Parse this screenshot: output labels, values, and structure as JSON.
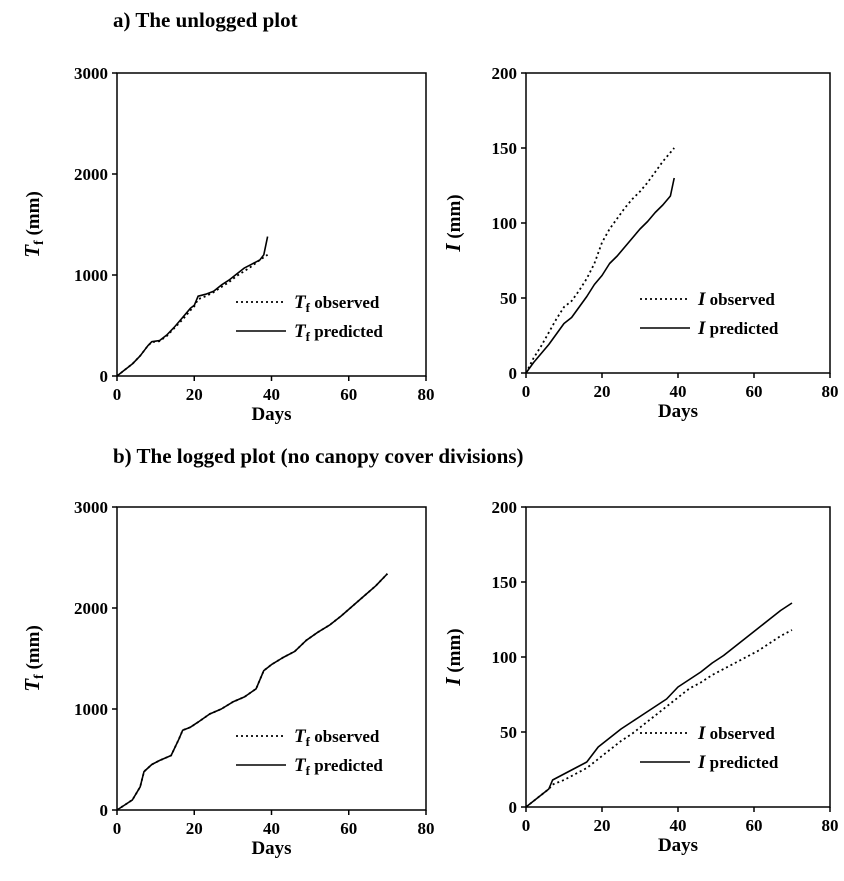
{
  "sections": [
    {
      "label": "a) The unlogged plot"
    },
    {
      "label": "b) The logged plot (no canopy cover divisions)"
    }
  ],
  "chart_data": [
    {
      "type": "line",
      "section": "a) The unlogged plot",
      "xlabel": "Days",
      "ylabel": {
        "base": "T",
        "sub": "f",
        "unit": " (mm)"
      },
      "xlim": [
        0,
        80
      ],
      "ylim": [
        0,
        3000
      ],
      "xticks": [
        0,
        20,
        40,
        60,
        80
      ],
      "yticks": [
        0,
        1000,
        2000,
        3000
      ],
      "grid": false,
      "legend_position": "bottom-right",
      "series": [
        {
          "name": {
            "base": "T",
            "sub": "f",
            "rest": " observed"
          },
          "style": "dotted",
          "x": [
            0,
            2,
            4,
            6,
            8,
            9,
            11,
            13,
            15,
            17,
            19,
            20,
            21,
            23,
            25,
            27,
            29,
            31,
            33,
            35,
            37,
            39
          ],
          "y": [
            0,
            60,
            120,
            200,
            300,
            335,
            345,
            400,
            480,
            560,
            650,
            690,
            760,
            790,
            830,
            880,
            930,
            990,
            1040,
            1090,
            1150,
            1200
          ]
        },
        {
          "name": {
            "base": "T",
            "sub": "f",
            "rest": " predicted"
          },
          "style": "solid",
          "x": [
            0,
            2,
            4,
            6,
            8,
            9,
            11,
            13,
            15,
            17,
            19,
            20,
            21,
            23,
            25,
            27,
            29,
            31,
            33,
            35,
            37,
            38,
            39
          ],
          "y": [
            0,
            60,
            120,
            200,
            300,
            340,
            350,
            410,
            490,
            580,
            670,
            700,
            790,
            810,
            840,
            900,
            950,
            1010,
            1070,
            1110,
            1150,
            1200,
            1380
          ]
        }
      ]
    },
    {
      "type": "line",
      "section": "a) The unlogged plot",
      "xlabel": "Days",
      "ylabel": {
        "base": "I",
        "sub": "",
        "unit": " (mm)"
      },
      "xlim": [
        0,
        80
      ],
      "ylim": [
        0,
        200
      ],
      "xticks": [
        0,
        20,
        40,
        60,
        80
      ],
      "yticks": [
        0,
        50,
        100,
        150,
        200
      ],
      "grid": false,
      "legend_position": "bottom-right",
      "series": [
        {
          "name": {
            "base": "I",
            "sub": "",
            "rest": " observed"
          },
          "style": "dotted",
          "x": [
            0,
            2,
            4,
            6,
            8,
            10,
            12,
            14,
            16,
            18,
            20,
            22,
            24,
            26,
            28,
            30,
            32,
            34,
            36,
            38,
            39
          ],
          "y": [
            0,
            10,
            18,
            27,
            36,
            44,
            48,
            55,
            63,
            73,
            87,
            96,
            103,
            110,
            116,
            121,
            127,
            134,
            141,
            147,
            150
          ]
        },
        {
          "name": {
            "base": "I",
            "sub": "",
            "rest": " predicted"
          },
          "style": "solid",
          "x": [
            0,
            2,
            4,
            6,
            8,
            10,
            12,
            14,
            16,
            18,
            20,
            22,
            24,
            26,
            28,
            30,
            32,
            34,
            36,
            38,
            39
          ],
          "y": [
            0,
            7,
            13,
            19,
            26,
            33,
            37,
            44,
            51,
            59,
            65,
            73,
            78,
            84,
            90,
            96,
            101,
            107,
            112,
            118,
            130
          ]
        }
      ]
    },
    {
      "type": "line",
      "section": "b) The logged plot (no canopy cover divisions)",
      "xlabel": "Days",
      "ylabel": {
        "base": "T",
        "sub": "f",
        "unit": " (mm)"
      },
      "xlim": [
        0,
        80
      ],
      "ylim": [
        0,
        3000
      ],
      "xticks": [
        0,
        20,
        40,
        60,
        80
      ],
      "yticks": [
        0,
        1000,
        2000,
        3000
      ],
      "grid": false,
      "legend_position": "bottom-right",
      "series": [
        {
          "name": {
            "base": "T",
            "sub": "f",
            "rest": " observed"
          },
          "style": "dotted",
          "x": [
            0,
            2,
            4,
            6,
            7,
            9,
            11,
            14,
            16,
            17,
            19,
            21,
            24,
            27,
            30,
            33,
            36,
            38,
            40,
            43,
            46,
            49,
            52,
            55,
            58,
            61,
            64,
            67,
            70
          ],
          "y": [
            0,
            50,
            100,
            230,
            380,
            450,
            490,
            540,
            700,
            790,
            820,
            870,
            950,
            1000,
            1070,
            1120,
            1200,
            1380,
            1440,
            1510,
            1570,
            1680,
            1760,
            1830,
            1920,
            2020,
            2120,
            2220,
            2340
          ]
        },
        {
          "name": {
            "base": "T",
            "sub": "f",
            "rest": " predicted"
          },
          "style": "solid",
          "x": [
            0,
            2,
            4,
            6,
            7,
            9,
            11,
            14,
            16,
            17,
            19,
            21,
            24,
            27,
            30,
            33,
            36,
            38,
            40,
            43,
            46,
            49,
            52,
            55,
            58,
            61,
            64,
            67,
            70
          ],
          "y": [
            0,
            50,
            100,
            230,
            380,
            450,
            490,
            540,
            700,
            790,
            820,
            870,
            950,
            1000,
            1070,
            1120,
            1200,
            1380,
            1440,
            1510,
            1570,
            1680,
            1760,
            1830,
            1920,
            2020,
            2120,
            2220,
            2340
          ]
        }
      ]
    },
    {
      "type": "line",
      "section": "b) The logged plot (no canopy cover divisions)",
      "xlabel": "Days",
      "ylabel": {
        "base": "I",
        "sub": "",
        "unit": " (mm)"
      },
      "xlim": [
        0,
        80
      ],
      "ylim": [
        0,
        200
      ],
      "xticks": [
        0,
        20,
        40,
        60,
        80
      ],
      "yticks": [
        0,
        50,
        100,
        150,
        200
      ],
      "grid": false,
      "legend_position": "bottom-right",
      "series": [
        {
          "name": {
            "base": "I",
            "sub": "",
            "rest": " observed"
          },
          "style": "dotted",
          "x": [
            0,
            2,
            4,
            6,
            7,
            10,
            13,
            16,
            19,
            22,
            25,
            28,
            31,
            34,
            37,
            40,
            43,
            46,
            49,
            52,
            55,
            58,
            61,
            64,
            67,
            70
          ],
          "y": [
            0,
            4,
            8,
            12,
            15,
            18,
            22,
            26,
            32,
            38,
            44,
            49,
            55,
            61,
            67,
            73,
            79,
            83,
            88,
            92,
            96,
            100,
            104,
            109,
            114,
            118
          ]
        },
        {
          "name": {
            "base": "I",
            "sub": "",
            "rest": " predicted"
          },
          "style": "solid",
          "x": [
            0,
            2,
            4,
            6,
            7,
            10,
            13,
            16,
            19,
            22,
            25,
            28,
            31,
            34,
            37,
            40,
            43,
            46,
            49,
            52,
            55,
            58,
            61,
            64,
            67,
            70
          ],
          "y": [
            0,
            4,
            8,
            12,
            18,
            22,
            26,
            30,
            40,
            46,
            52,
            57,
            62,
            67,
            72,
            80,
            85,
            90,
            96,
            101,
            107,
            113,
            119,
            125,
            131,
            136
          ]
        }
      ]
    }
  ]
}
